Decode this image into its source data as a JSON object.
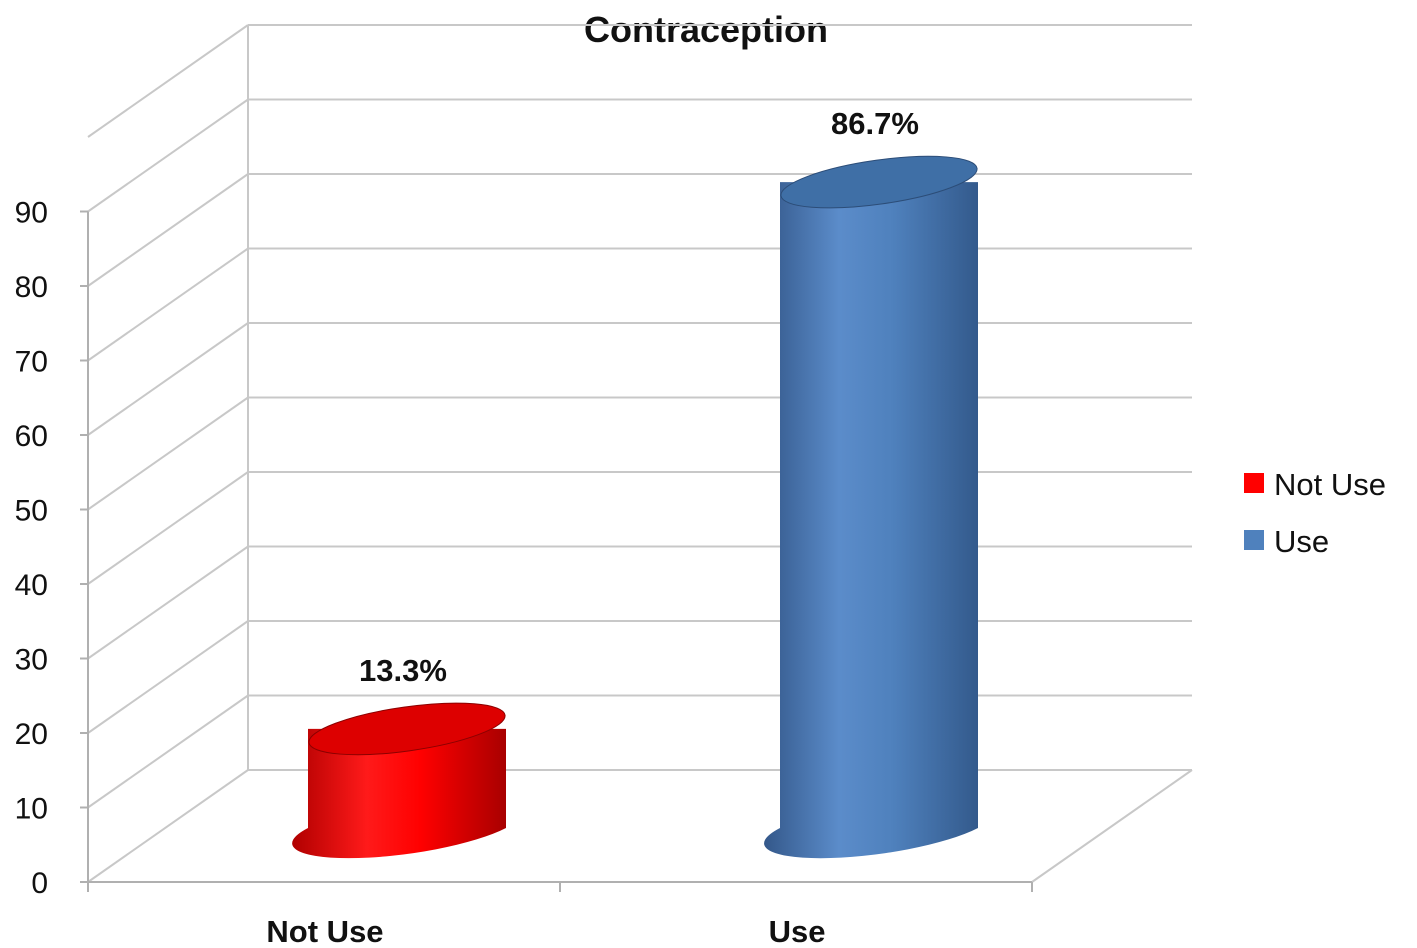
{
  "chart_data": {
    "type": "bar",
    "title": "Contraception",
    "categories": [
      "Not Use",
      "Use"
    ],
    "series": [
      {
        "name": "Not Use",
        "color": "#ff0000",
        "values": [
          13.3,
          null
        ],
        "label": "13.3%"
      },
      {
        "name": "Use",
        "color": "#4f81bd",
        "values": [
          null,
          86.7
        ],
        "label": "86.7%"
      }
    ],
    "y_ticks": [
      "0",
      "10",
      "20",
      "30",
      "40",
      "50",
      "60",
      "70",
      "80",
      "90"
    ],
    "ylim": [
      0,
      100
    ],
    "xlabel": "",
    "ylabel": "",
    "grid": true,
    "legend": "right",
    "style": "3d-cylinder"
  }
}
